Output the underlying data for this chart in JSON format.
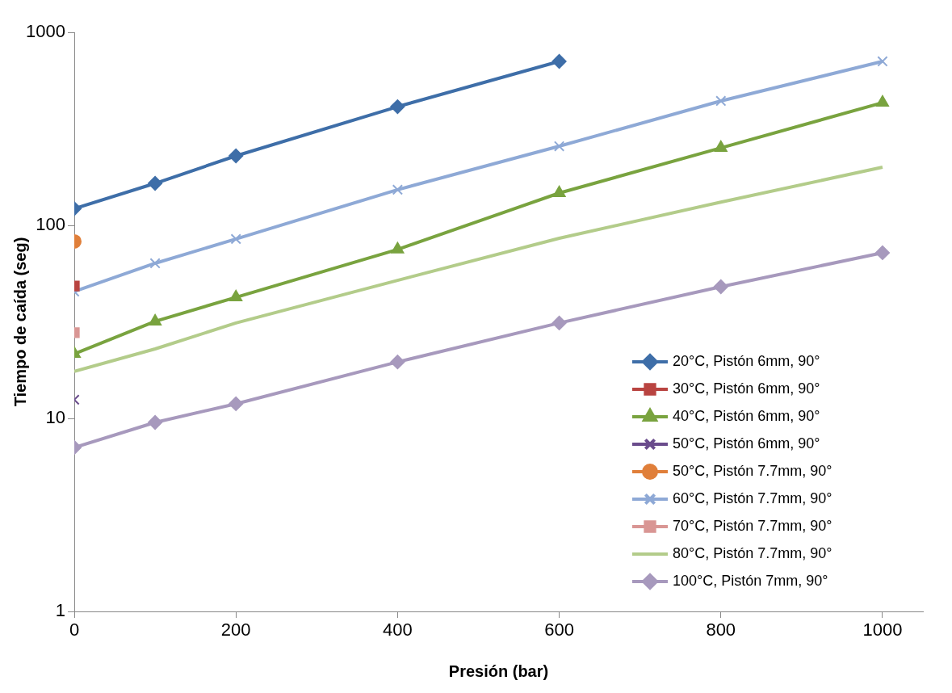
{
  "chart_data": {
    "type": "line",
    "xlabel": "Presión (bar)",
    "ylabel": "Tiempo de caída (seg)",
    "log": "y",
    "xlim": [
      0,
      1050
    ],
    "xticks": [
      0,
      200,
      400,
      600,
      800,
      1000
    ],
    "ylim": [
      1,
      1000
    ],
    "yticks": [
      1,
      10,
      100,
      1000
    ],
    "grid": false,
    "legend": "bottom right",
    "series": [
      {
        "name": "20°C, Pistón 6mm, 90°",
        "color": "#3e6ea8",
        "marker": "diamond",
        "x": [
          0,
          100,
          200,
          400,
          600
        ],
        "values": [
          122,
          165,
          229,
          412,
          707
        ]
      },
      {
        "name": "30°C, Pistón 6mm, 90°",
        "color": "#b94441",
        "marker": "square",
        "x": [
          0
        ],
        "values": [
          48.5
        ]
      },
      {
        "name": "40°C, Pistón 6mm, 90°",
        "color": "#79a33f",
        "marker": "triangle",
        "x": [
          0,
          100,
          200,
          400,
          600,
          800,
          1000
        ],
        "values": [
          21.6,
          31.8,
          42.4,
          75,
          147,
          252,
          432
        ]
      },
      {
        "name": "50°C, Pistón 6mm, 90°",
        "color": "#6a4c8c",
        "marker": "cross",
        "x": [
          0
        ],
        "values": [
          12.5
        ]
      },
      {
        "name": "50°C, Pistón 7.7mm, 90°",
        "color": "#e07f3a",
        "marker": "circle",
        "x": [
          0
        ],
        "values": [
          82.5
        ]
      },
      {
        "name": "60°C, Pistón 7.7mm, 90°",
        "color": "#8ea9d6",
        "marker": "cross",
        "x": [
          0,
          100,
          200,
          400,
          600,
          800,
          1000
        ],
        "values": [
          45.4,
          63.6,
          85,
          153,
          257,
          441,
          707
        ]
      },
      {
        "name": "70°C, Pistón 7.7mm, 90°",
        "color": "#d99694",
        "marker": "square",
        "x": [
          0
        ],
        "values": [
          27.8
        ]
      },
      {
        "name": "80°C, Pistón 7.7mm, 90°",
        "color": "#b3cc8a",
        "marker": "none",
        "x": [
          0,
          100,
          200,
          400,
          600,
          800,
          1000
        ],
        "values": [
          17.5,
          22.9,
          31.2,
          51.9,
          85.7,
          132,
          200
        ]
      },
      {
        "name": "100°C, Pistón 7mm, 90°",
        "color": "#a799bd",
        "marker": "diamond",
        "x": [
          0,
          100,
          200,
          400,
          600,
          800,
          1000
        ],
        "values": [
          7.07,
          9.53,
          11.9,
          19.6,
          31.2,
          48.1,
          72.1
        ]
      }
    ]
  }
}
